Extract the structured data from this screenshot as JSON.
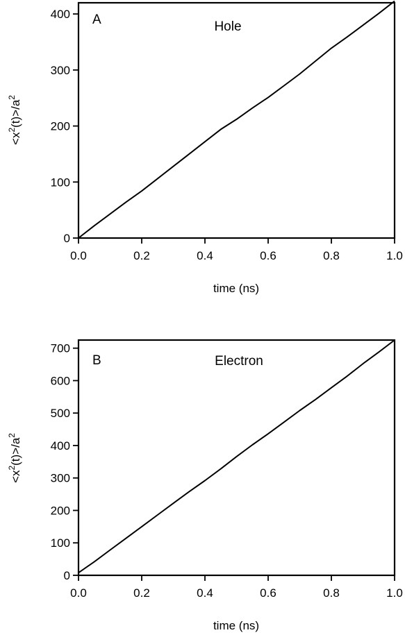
{
  "chart_data": [
    {
      "type": "line",
      "panel_label": "A",
      "title": "Hole",
      "xlabel": "time (ns)",
      "ylabel": "<x²(t)>/a²",
      "ylabel_parts": {
        "pre": "<x",
        "sup1": "2",
        "mid": "(t)>/a",
        "sup2": "2"
      },
      "xlim": [
        0,
        1.0
      ],
      "ylim": [
        0,
        420
      ],
      "xticks": [
        0,
        0.2,
        0.4,
        0.6,
        0.8,
        1.0
      ],
      "xtick_labels": [
        "0.0",
        "0.2",
        "0.4",
        "0.6",
        "0.8",
        "1.0"
      ],
      "yticks": [
        0,
        100,
        200,
        300,
        400
      ],
      "ytick_labels": [
        "0",
        "100",
        "200",
        "300",
        "400"
      ],
      "grid": false,
      "series": [
        {
          "x": [
            0,
            0.05,
            0.1,
            0.15,
            0.2,
            0.25,
            0.3,
            0.35,
            0.4,
            0.45,
            0.5,
            0.55,
            0.6,
            0.65,
            0.7,
            0.75,
            0.8,
            0.85,
            0.9,
            0.95,
            1.0
          ],
          "y": [
            0,
            22,
            43,
            64,
            84,
            106,
            128,
            150,
            172,
            194,
            212,
            232,
            251,
            272,
            293,
            316,
            339,
            359,
            380,
            401,
            423
          ]
        }
      ]
    },
    {
      "type": "line",
      "panel_label": "B",
      "title": "Electron",
      "xlabel": "time (ns)",
      "ylabel": "<x²(t)>/a²",
      "ylabel_parts": {
        "pre": "<x",
        "sup1": "2",
        "mid": "(t)>/a",
        "sup2": "2"
      },
      "xlim": [
        0,
        1.0
      ],
      "ylim": [
        0,
        725
      ],
      "xticks": [
        0,
        0.2,
        0.4,
        0.6,
        0.8,
        1.0
      ],
      "xtick_labels": [
        "0.0",
        "0.2",
        "0.4",
        "0.6",
        "0.8",
        "1.0"
      ],
      "yticks": [
        0,
        100,
        200,
        300,
        400,
        500,
        600,
        700
      ],
      "ytick_labels": [
        "0",
        "100",
        "200",
        "300",
        "400",
        "500",
        "600",
        "700"
      ],
      "grid": false,
      "series": [
        {
          "x": [
            0,
            0.05,
            0.1,
            0.15,
            0.2,
            0.25,
            0.3,
            0.35,
            0.4,
            0.45,
            0.5,
            0.55,
            0.6,
            0.65,
            0.7,
            0.75,
            0.8,
            0.85,
            0.9,
            0.95,
            1.0
          ],
          "y": [
            8,
            42,
            78,
            114,
            150,
            186,
            222,
            258,
            292,
            328,
            366,
            402,
            436,
            472,
            508,
            542,
            578,
            614,
            652,
            688,
            725
          ]
        }
      ]
    }
  ]
}
